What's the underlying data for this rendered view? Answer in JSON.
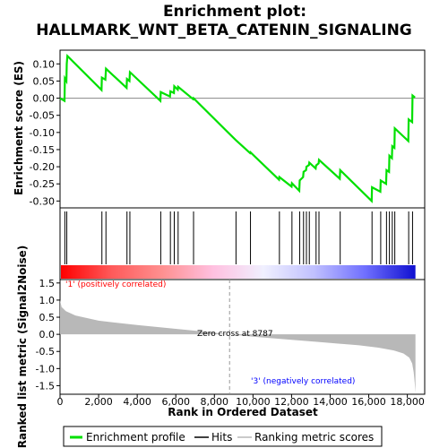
{
  "chart_data": {
    "type": "line",
    "title_line1": "Enrichment plot:",
    "title_line2": "HALLMARK_WNT_BETA_CATENIN_SIGNALING",
    "xlabel": "Rank in Ordered Dataset",
    "xlim": [
      0,
      18900
    ],
    "x_ticks": [
      0,
      2000,
      4000,
      6000,
      8000,
      10000,
      12000,
      14000,
      16000,
      18000
    ],
    "x_tick_labels": [
      "0",
      "2,000",
      "4,000",
      "6,000",
      "8,000",
      "10,000",
      "12,000",
      "14,000",
      "16,000",
      "18,000"
    ],
    "es_panel": {
      "ylabel": "Enrichment score (ES)",
      "ylim": [
        -0.32,
        0.14
      ],
      "y_ticks": [
        0.1,
        0.05,
        0.0,
        -0.05,
        -0.1,
        -0.15,
        -0.2,
        -0.25,
        -0.3
      ],
      "y_tick_labels": [
        "0.10",
        "0.05",
        "0.00",
        "-0.05",
        "-0.10",
        "-0.15",
        "-0.20",
        "-0.25",
        "-0.30"
      ],
      "series": [
        {
          "name": "Enrichment profile",
          "color": "#00e000",
          "points": [
            [
              0,
              0.0
            ],
            [
              230,
              -0.008
            ],
            [
              250,
              0.058
            ],
            [
              330,
              0.05
            ],
            [
              350,
              0.1
            ],
            [
              380,
              0.123
            ],
            [
              2150,
              0.024
            ],
            [
              2170,
              0.06
            ],
            [
              2350,
              0.054
            ],
            [
              2380,
              0.086
            ],
            [
              3450,
              0.03
            ],
            [
              3470,
              0.056
            ],
            [
              3600,
              0.05
            ],
            [
              3620,
              0.076
            ],
            [
              5200,
              -0.008
            ],
            [
              5220,
              0.018
            ],
            [
              5700,
              0.005
            ],
            [
              5720,
              0.02
            ],
            [
              5900,
              0.015
            ],
            [
              5920,
              0.035
            ],
            [
              6100,
              0.025
            ],
            [
              6120,
              0.033
            ],
            [
              6900,
              -0.003
            ],
            [
              6920,
              0.0
            ],
            [
              9100,
              -0.122
            ],
            [
              9850,
              -0.16
            ],
            [
              9870,
              -0.158
            ],
            [
              11350,
              -0.238
            ],
            [
              11370,
              -0.23
            ],
            [
              12000,
              -0.258
            ],
            [
              12020,
              -0.248
            ],
            [
              12400,
              -0.27
            ],
            [
              12420,
              -0.24
            ],
            [
              12600,
              -0.23
            ],
            [
              12620,
              -0.215
            ],
            [
              12750,
              -0.21
            ],
            [
              12770,
              -0.2
            ],
            [
              12900,
              -0.195
            ],
            [
              12920,
              -0.188
            ],
            [
              13250,
              -0.205
            ],
            [
              13270,
              -0.196
            ],
            [
              13400,
              -0.19
            ],
            [
              13420,
              -0.18
            ],
            [
              14500,
              -0.235
            ],
            [
              14520,
              -0.21
            ],
            [
              16150,
              -0.3
            ],
            [
              16170,
              -0.26
            ],
            [
              16600,
              -0.273
            ],
            [
              16620,
              -0.24
            ],
            [
              16900,
              -0.25
            ],
            [
              16920,
              -0.21
            ],
            [
              17050,
              -0.215
            ],
            [
              17070,
              -0.168
            ],
            [
              17200,
              -0.175
            ],
            [
              17220,
              -0.14
            ],
            [
              17330,
              -0.145
            ],
            [
              17350,
              -0.088
            ],
            [
              18050,
              -0.125
            ],
            [
              18070,
              -0.062
            ],
            [
              18250,
              -0.07
            ],
            [
              18270,
              0.008
            ],
            [
              18400,
              0.002
            ]
          ]
        }
      ]
    },
    "hits": {
      "name": "Hits",
      "color": "#000000",
      "positions": [
        250,
        350,
        2170,
        2380,
        3470,
        3620,
        5220,
        5720,
        5920,
        6120,
        6920,
        9120,
        9870,
        11370,
        12020,
        12420,
        12620,
        12770,
        12920,
        13270,
        13420,
        14520,
        16170,
        16620,
        16920,
        17070,
        17220,
        17350,
        18070,
        18270
      ]
    },
    "rank_colorbar": {
      "stops": [
        "#ff0000",
        "#ff5a5a",
        "#ff9090",
        "#ffc0e0",
        "#f0f0ff",
        "#c0c0ff",
        "#7070ff",
        "#1010d0"
      ],
      "positive_label": "'1' (positively correlated)",
      "negative_label": "'3' (negatively correlated)",
      "positive_color": "#ff0000",
      "negative_color": "#0000ff"
    },
    "metric_panel": {
      "ylabel": "Ranked list metric (Signal2Noise)",
      "ylim": [
        -1.75,
        1.6
      ],
      "y_ticks": [
        1.5,
        1.0,
        0.5,
        0.0,
        -0.5,
        -1.0,
        -1.5
      ],
      "y_tick_labels": [
        "1.5",
        "1.0",
        "0.5",
        "0.0",
        "-0.5",
        "-1.0",
        "-1.5"
      ],
      "color": "#b8b8b8",
      "profile": [
        [
          0,
          1.0
        ],
        [
          80,
          0.8
        ],
        [
          300,
          0.68
        ],
        [
          800,
          0.55
        ],
        [
          2000,
          0.4
        ],
        [
          4000,
          0.27
        ],
        [
          6000,
          0.16
        ],
        [
          8000,
          0.05
        ],
        [
          8787,
          0.0
        ],
        [
          10000,
          -0.07
        ],
        [
          12000,
          -0.16
        ],
        [
          14000,
          -0.25
        ],
        [
          15500,
          -0.32
        ],
        [
          16500,
          -0.39
        ],
        [
          17300,
          -0.47
        ],
        [
          17800,
          -0.56
        ],
        [
          18100,
          -0.68
        ],
        [
          18250,
          -0.85
        ],
        [
          18330,
          -1.1
        ],
        [
          18380,
          -1.4
        ],
        [
          18420,
          -1.7
        ]
      ],
      "zero_cross_label": "Zero cross at 8787",
      "zero_cross_x": 8787
    },
    "legend": [
      {
        "label": "Enrichment profile",
        "color": "#00e000"
      },
      {
        "label": "Hits",
        "color": "#000000"
      },
      {
        "label": "Ranking metric scores",
        "color": "#b8b8b8"
      }
    ]
  }
}
